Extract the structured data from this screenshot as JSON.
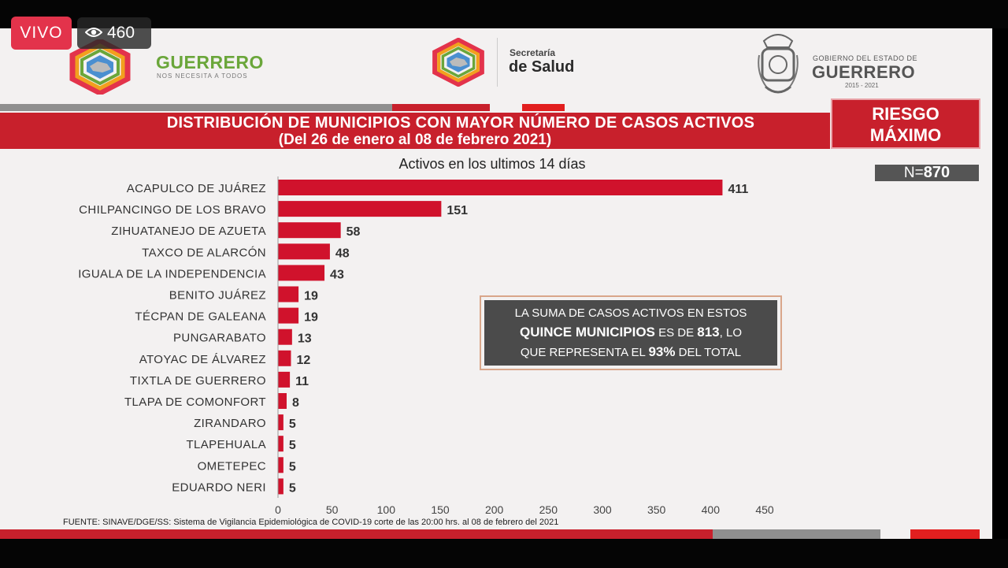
{
  "stream": {
    "live_label": "VIVO",
    "viewer_count": "460"
  },
  "header": {
    "brand_name": "GUERRERO",
    "brand_tagline": "NOS NECESITA A TODOS",
    "secretaria_line1": "Secretaría",
    "secretaria_line2": "de Salud",
    "gov_line1": "GOBIERNO DEL ESTADO DE",
    "gov_line2": "GUERRERO",
    "gov_period": "2015 - 2021"
  },
  "banner": {
    "title_line1": "DISTRIBUCIÓN DE MUNICIPIOS CON MAYOR NÚMERO DE  CASOS ACTIVOS",
    "title_line2": "(Del 26 de enero al 08 de febrero 2021)"
  },
  "risk": {
    "line1": "RIESGO",
    "line2": "MÁXIMO"
  },
  "n_box": {
    "prefix": "N=",
    "value": "870"
  },
  "callout": {
    "part1": "LA SUMA DE CASOS ACTIVOS EN ESTOS",
    "part2_bold": "QUINCE MUNICIPIOS",
    "part3": "ES DE",
    "part4_bold": "813",
    "part5": ", LO",
    "part6": "QUE REPRESENTA EL",
    "part7_bold": "93%",
    "part8": "DEL TOTAL"
  },
  "source": "FUENTE: SINAVE/DGE/SS: Sistema de Vigilancia Epidemiológica de COVID-19 corte de las 20:00 hrs. al 08 de febrero del 2021",
  "colors": {
    "primary_red": "#c8202c",
    "bar_red": "#d0122c",
    "dark_gray": "#4b4b4b",
    "green_brand": "#6aa63a"
  },
  "chart_data": {
    "type": "bar",
    "orientation": "horizontal",
    "title": "Activos en los ultimos 14 días",
    "categories": [
      "ACAPULCO DE JUÁREZ",
      "CHILPANCINGO DE LOS BRAVO",
      "ZIHUATANEJO DE AZUETA",
      "TAXCO DE ALARCÓN",
      "IGUALA DE LA INDEPENDENCIA",
      "BENITO JUÁREZ",
      "TÉCPAN DE GALEANA",
      "PUNGARABATO",
      "ATOYAC DE ÁLVAREZ",
      "TIXTLA DE GUERRERO",
      "TLAPA DE COMONFORT",
      "ZIRANDARO",
      "TLAPEHUALA",
      "OMETEPEC",
      "EDUARDO NERI"
    ],
    "values": [
      411,
      151,
      58,
      48,
      43,
      19,
      19,
      13,
      12,
      11,
      8,
      5,
      5,
      5,
      5
    ],
    "xlim": [
      0,
      450
    ],
    "xticks": [
      0,
      50,
      100,
      150,
      200,
      250,
      300,
      350,
      400,
      450
    ],
    "grid": false,
    "data_labels": true
  }
}
